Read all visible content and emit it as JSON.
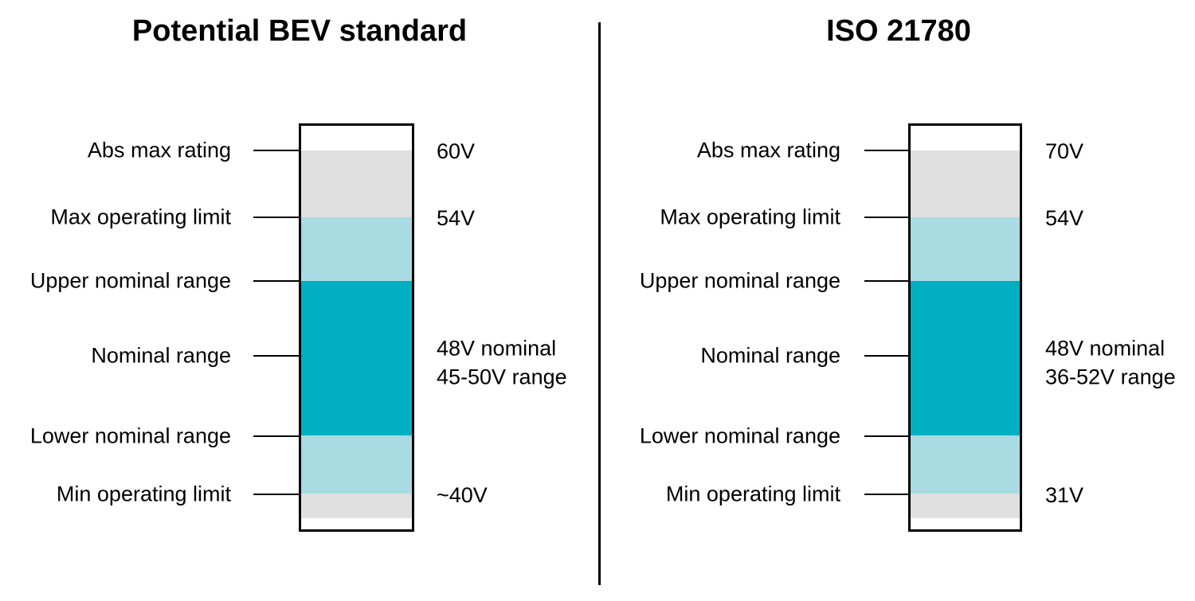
{
  "colors": {
    "band_gray": "#e0e0e0",
    "band_light_teal": "#a8dbe2",
    "band_teal": "#00afc2",
    "bar_border": "#000000",
    "divider": "#000000"
  },
  "panels": [
    {
      "title": "Potential BEV standard",
      "labels": [
        "Abs max rating",
        "Max operating limit",
        "Upper nominal range",
        "Nominal range",
        "Lower nominal range",
        "Min operating limit"
      ],
      "values": {
        "abs_max": "60V",
        "max_operating": "54V",
        "nominal": "48V nominal\n45-50V range",
        "min_operating": "~40V"
      }
    },
    {
      "title": "ISO 21780",
      "labels": [
        "Abs max rating",
        "Max operating limit",
        "Upper nominal range",
        "Nominal range",
        "Lower nominal range",
        "Min operating limit"
      ],
      "values": {
        "abs_max": "70V",
        "max_operating": "54V",
        "nominal": "48V nominal\n36-52V range",
        "min_operating": "31V"
      }
    }
  ]
}
